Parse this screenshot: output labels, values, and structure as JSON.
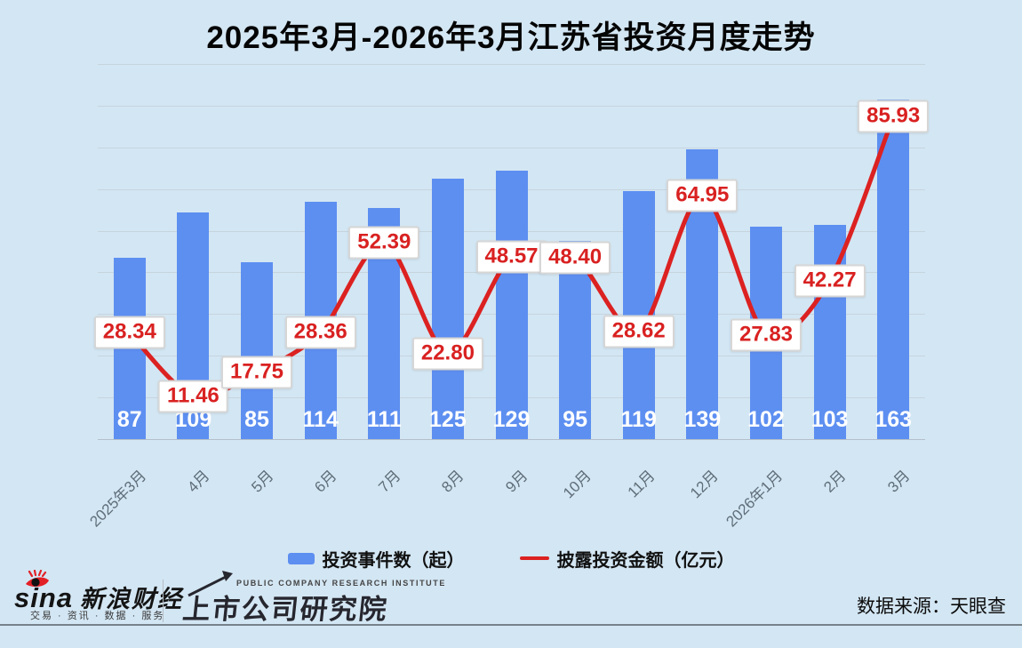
{
  "title": "2025年3月-2026年3月江苏省投资月度走势",
  "chart_data": {
    "type": "bar",
    "subtype": "bar-line-combo",
    "title": "2025年3月-2026年3月江苏省投资月度走势",
    "categories": [
      "2025年3月",
      "4月",
      "5月",
      "6月",
      "7月",
      "8月",
      "9月",
      "10月",
      "11月",
      "12月",
      "2026年1月",
      "2月",
      "3月"
    ],
    "series": [
      {
        "name": "投资事件数（起）",
        "type": "bar",
        "values": [
          87,
          109,
          85,
          114,
          111,
          125,
          129,
          95,
          119,
          139,
          102,
          103,
          163
        ],
        "axis": {
          "min": 0,
          "max": 180
        }
      },
      {
        "name": "披露投资金额（亿元）",
        "type": "line",
        "values": [
          28.34,
          11.46,
          17.75,
          28.36,
          52.39,
          22.8,
          48.57,
          48.4,
          28.62,
          64.95,
          27.83,
          42.27,
          85.93
        ],
        "labels": [
          "28.34",
          "11.46",
          "17.75",
          "28.36",
          "52.39",
          "22.80",
          "48.57",
          "48.40",
          "28.62",
          "64.95",
          "27.83",
          "42.27",
          "85.93"
        ],
        "axis": {
          "min": 0,
          "max": 100
        }
      }
    ],
    "grid": true,
    "grid_intervals": 9,
    "legend_position": "bottom",
    "value_labels": "bar counts in white inside bar bottoms; line values in white boxes centered on points"
  },
  "legend": {
    "items": [
      {
        "label": "投资事件数（起）",
        "type": "bar"
      },
      {
        "label": "披露投资金额（亿元）",
        "type": "line"
      }
    ]
  },
  "footer": {
    "sina_logo": "sina",
    "sina_brand": "新浪财经",
    "sina_tagline": "交易 · 资讯 · 数据 · 服务",
    "institute_en": "PUBLIC COMPANY RESEARCH INSTITUTE",
    "institute_cn": "上市公司研究院",
    "data_source": "数据来源：天眼查"
  },
  "colors": {
    "background": "#d3e6f3",
    "bar": "#5d8ff1",
    "line": "#dc2121",
    "line_label_text": "#d92121",
    "label_box_border": "#d6d6d6",
    "grid": "#bec4cc",
    "axis_label": "#5f6e79",
    "text": "#111111"
  }
}
